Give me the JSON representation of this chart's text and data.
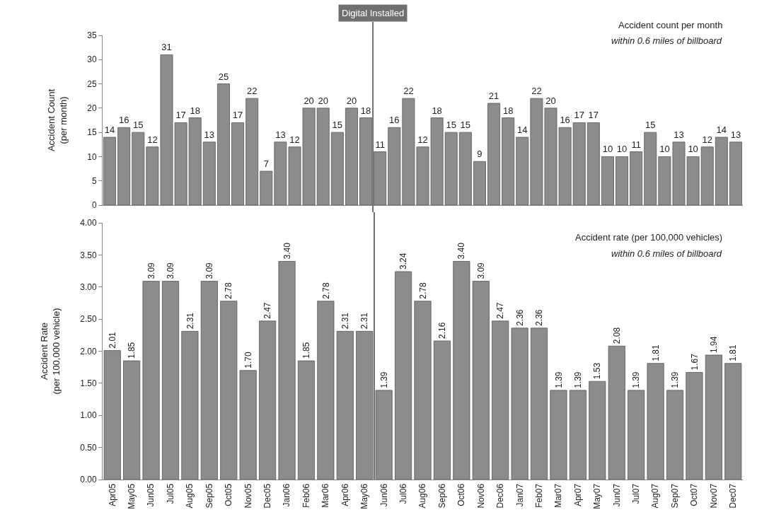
{
  "chart_data": [
    {
      "type": "bar",
      "ylabel": "Accident Count\n(per month)",
      "categories": [
        null,
        null,
        null,
        null,
        null,
        null,
        null,
        null,
        null,
        null,
        null,
        null,
        null,
        null,
        null,
        null,
        null,
        null,
        null,
        null,
        null,
        null,
        null,
        null,
        null,
        null,
        null,
        null,
        null,
        null,
        null,
        null,
        null,
        null,
        null,
        null,
        null,
        null,
        null,
        null,
        null,
        null,
        null,
        null,
        null
      ],
      "values": [
        14,
        16,
        15,
        12,
        31,
        17,
        18,
        13,
        25,
        17,
        22,
        7,
        13,
        12,
        20,
        20,
        15,
        20,
        18,
        11,
        16,
        22,
        12,
        18,
        15,
        15,
        9,
        21,
        18,
        14,
        22,
        20,
        16,
        17,
        17,
        10,
        10,
        11,
        15,
        10,
        13,
        10,
        12,
        14,
        13
      ],
      "color": "#8c8c8c",
      "ylim": [
        0,
        35
      ],
      "yticks": [
        0,
        5,
        10,
        15,
        20,
        25,
        30,
        35
      ],
      "data_labels": true,
      "grid": false,
      "tick_labels": "y",
      "annotations": [
        "Accident count per month",
        "within 0.6 miles of billboard",
        "Digital Installed"
      ]
    },
    {
      "type": "bar",
      "ylabel": "Accident Rate\n(per 100,000 vehicle)",
      "categories": [
        "Apr05",
        "May05",
        "Jun05",
        "Jul05",
        "Aug05",
        "Sep05",
        "Oct05",
        "Nov05",
        "Dec05",
        "Jan06",
        "Feb06",
        "Mar06",
        "Apr06",
        "May06",
        "Jun06",
        "Jul06",
        "Aug06",
        "Sep06",
        "Oct06",
        "Nov06",
        "Dec06",
        "Jan07",
        "Feb07",
        "Mar07",
        "Apr07",
        "May07",
        "Jun07",
        "Jul07",
        "Aug07",
        "Sep07",
        "Oct07",
        "Nov07",
        "Dec07"
      ],
      "values": [
        2.01,
        1.85,
        3.09,
        3.09,
        2.31,
        3.09,
        2.78,
        1.7,
        2.47,
        3.4,
        1.85,
        2.78,
        2.31,
        2.31,
        1.39,
        3.24,
        2.78,
        2.16,
        3.4,
        3.09,
        2.47,
        2.36,
        2.36,
        1.39,
        1.39,
        1.53,
        2.08,
        1.39,
        1.81,
        1.39,
        1.67,
        1.94,
        1.81
      ],
      "value_labels": [
        "2.01",
        "1.85",
        "3.09",
        "3.09",
        "2.31",
        "3.09",
        "2.78",
        "1.70",
        "2.47",
        "3.40",
        "1.85",
        "2.78",
        "2.31",
        "2.31",
        "1.39",
        "3.24",
        "2.78",
        "2.16",
        "3.40",
        "3.09",
        "2.47",
        "2.36",
        "2.36",
        "1.39",
        "1.39",
        "1.53",
        "2.08",
        "1.39",
        "1.81",
        "1.39",
        "1.67",
        "1.94",
        "1.81"
      ],
      "color": "#8c8c8c",
      "ylim": [
        0,
        4
      ],
      "yticks": [
        {
          "value": 0,
          "label": "0.00"
        },
        {
          "value": 0.5,
          "label": "0.50"
        },
        {
          "value": 1,
          "label": "1.00"
        },
        {
          "value": 1.5,
          "label": "1.50"
        },
        {
          "value": 2,
          "label": "2.00"
        },
        {
          "value": 2.5,
          "label": "2.50"
        },
        {
          "value": 3,
          "label": "3.00"
        },
        {
          "value": 3.5,
          "label": "3.50"
        },
        {
          "value": 4,
          "label": "4.00"
        }
      ],
      "grid": false,
      "annotations": [
        "Accident rate (per 100,000 vehicles)",
        "within 0.6 miles of billboard"
      ]
    }
  ]
}
